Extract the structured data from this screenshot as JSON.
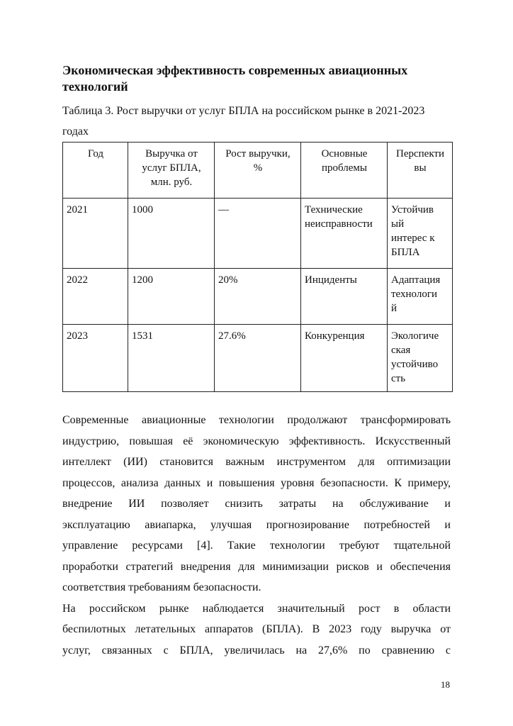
{
  "heading": "Экономическая эффективность современных авиационных технологий",
  "caption": "Таблица 3. Рост выручки от услуг БПЛА на российском рынке в 2021-2023 годах",
  "table": {
    "headers": [
      "Год",
      "Выручка от\nуслуг БПЛА,\nмлн. руб.",
      "Рост выручки,\n%",
      "Основные\nпроблемы",
      "Перспекти\nвы"
    ],
    "rows": [
      [
        "2021",
        "1000",
        "—",
        "Технические\nнеисправности",
        "Устойчив\nый\nинтерес к\nБПЛА"
      ],
      [
        "2022",
        "1200",
        "20%",
        "Инциденты",
        "Адаптация\nтехнологи\nй"
      ],
      [
        "2023",
        "1531",
        "27.6%",
        "Конкуренция",
        "Экологиче\nская\nустойчиво\nсть"
      ]
    ]
  },
  "paragraphs": [
    [
      "Современные авиационные технологии продолжают трансформировать",
      "индустрию, повышая её экономическую эффективность. Искусственный",
      "интеллект (ИИ) становится важным инструментом для оптимизации",
      "процессов, анализа данных и повышения уровня безопасности. К примеру,",
      "внедрение ИИ позволяет снизить затраты на обслуживание и",
      "эксплуатацию авиапарка, улучшая прогнозирование потребностей и",
      "управление ресурсами [4]. Такие технологии требуют тщательной",
      "проработки стратегий внедрения для минимизации рисков и обеспечения",
      "соответствия требованиям безопасности."
    ],
    [
      "На российском рынке наблюдается значительный рост в области",
      "беспилотных летательных аппаратов (БПЛА). В 2023 году выручка от",
      "услуг, связанных с БПЛА, увеличилась на 27,6% по сравнению с"
    ]
  ],
  "page_number": "18"
}
